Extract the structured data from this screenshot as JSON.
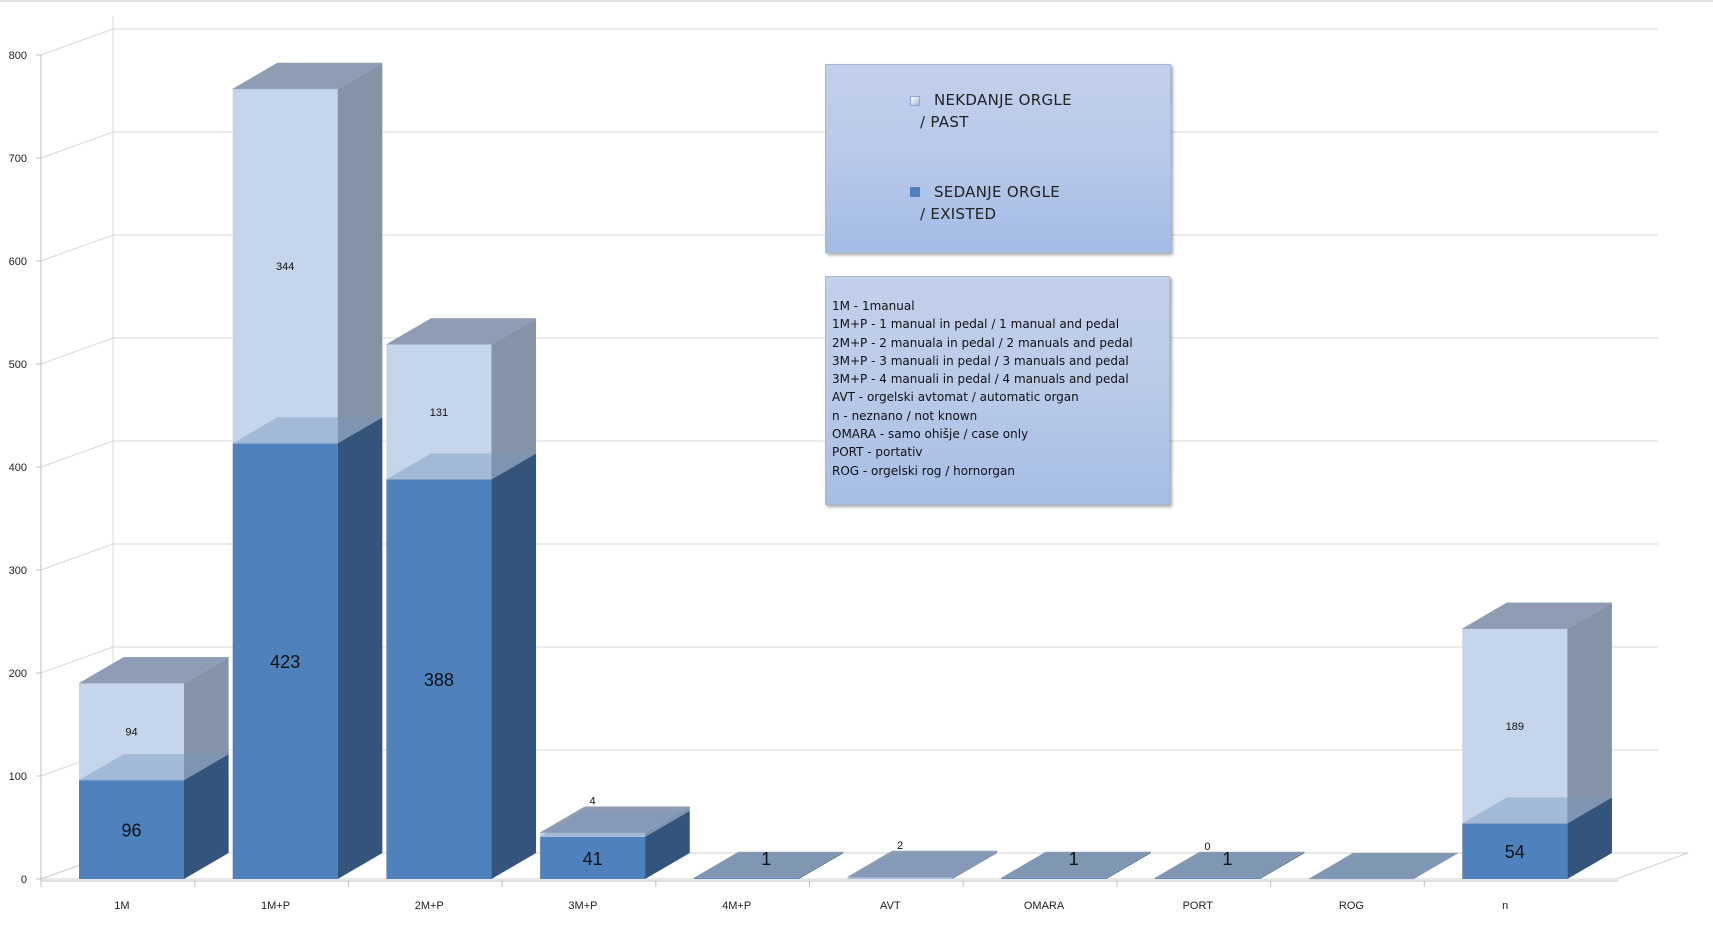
{
  "chart_data": {
    "type": "bar",
    "stacked": true,
    "style": "3d-column",
    "categories": [
      "1M",
      "1M+P",
      "2M+P",
      "3M+P",
      "4M+P",
      "AVT",
      "OMARA",
      "PORT",
      "ROG",
      "n"
    ],
    "series": [
      {
        "name": "SEDANJE ORGLE / EXISTED",
        "color": "#4f81bd",
        "values": [
          96,
          423,
          388,
          41,
          1,
          0,
          1,
          1,
          0,
          54
        ],
        "data_labels": [
          "96",
          "423",
          "388",
          "41",
          "1",
          "",
          "1",
          "1",
          "",
          "54"
        ]
      },
      {
        "name": "NEKDANJE ORGLE / PAST",
        "color": "#c5d5ec",
        "values": [
          94,
          344,
          131,
          4,
          0,
          2,
          0,
          0,
          0,
          189
        ],
        "data_labels": [
          "94",
          "344",
          "131",
          "4",
          "",
          "2",
          "",
          "0",
          "",
          "189"
        ]
      }
    ],
    "ylim": [
      0,
      800
    ],
    "yticks": [
      0,
      100,
      200,
      300,
      400,
      500,
      600,
      700,
      800
    ],
    "grid": true,
    "legend_position": "top-center"
  },
  "legend": {
    "past_line1": "NEKDANJE ORGLE",
    "past_line2": "/ PAST",
    "existed_line1": "SEDANJE ORGLE",
    "existed_line2": "/ EXISTED"
  },
  "abbreviations": [
    "1M - 1manual",
    "1M+P - 1 manual in pedal / 1 manual and pedal",
    "2M+P - 2 manuala in pedal / 2 manuals and pedal",
    "3M+P - 3 manuali in pedal / 3 manuals and pedal",
    "3M+P - 4 manuali in pedal / 4 manuals and pedal",
    "AVT - orgelski avtomat / automatic organ",
    "n - neznano / not known",
    "OMARA - samo ohišje  / case only",
    "PORT - portativ",
    "ROG - orgelski rog / hornorgan"
  ]
}
